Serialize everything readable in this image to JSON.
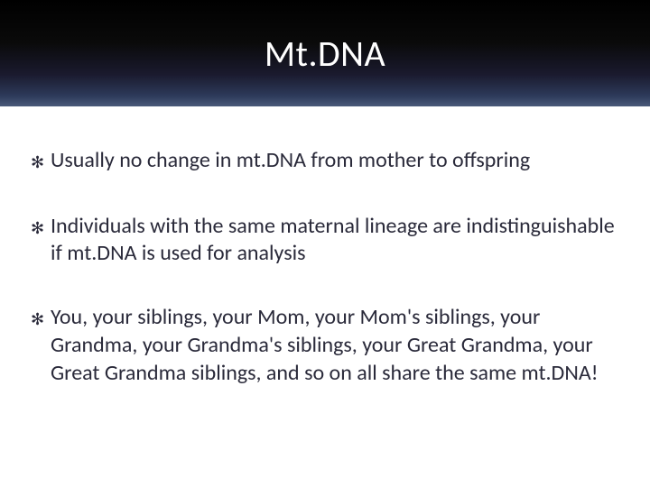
{
  "header": {
    "title": "Mt.DNA",
    "background_gradient": [
      "#000000",
      "#0a0a0a",
      "#1a1a2e",
      "#2d3a5a",
      "#4a5a7a"
    ],
    "title_color": "#ffffff",
    "title_fontsize": 40
  },
  "body": {
    "text_color": "#2a2a3a",
    "fontsize": 24,
    "bullet_glyph": "✻",
    "bullets": [
      "Usually no change in mt.DNA from mother to offspring",
      "Individuals with the same maternal lineage are indistinguishable if mt.DNA is used for analysis",
      "You, your siblings, your Mom, your Mom's siblings, your Grandma, your Grandma's siblings, your Great Grandma, your Great Grandma siblings, and so on all share the same mt.DNA!"
    ]
  }
}
